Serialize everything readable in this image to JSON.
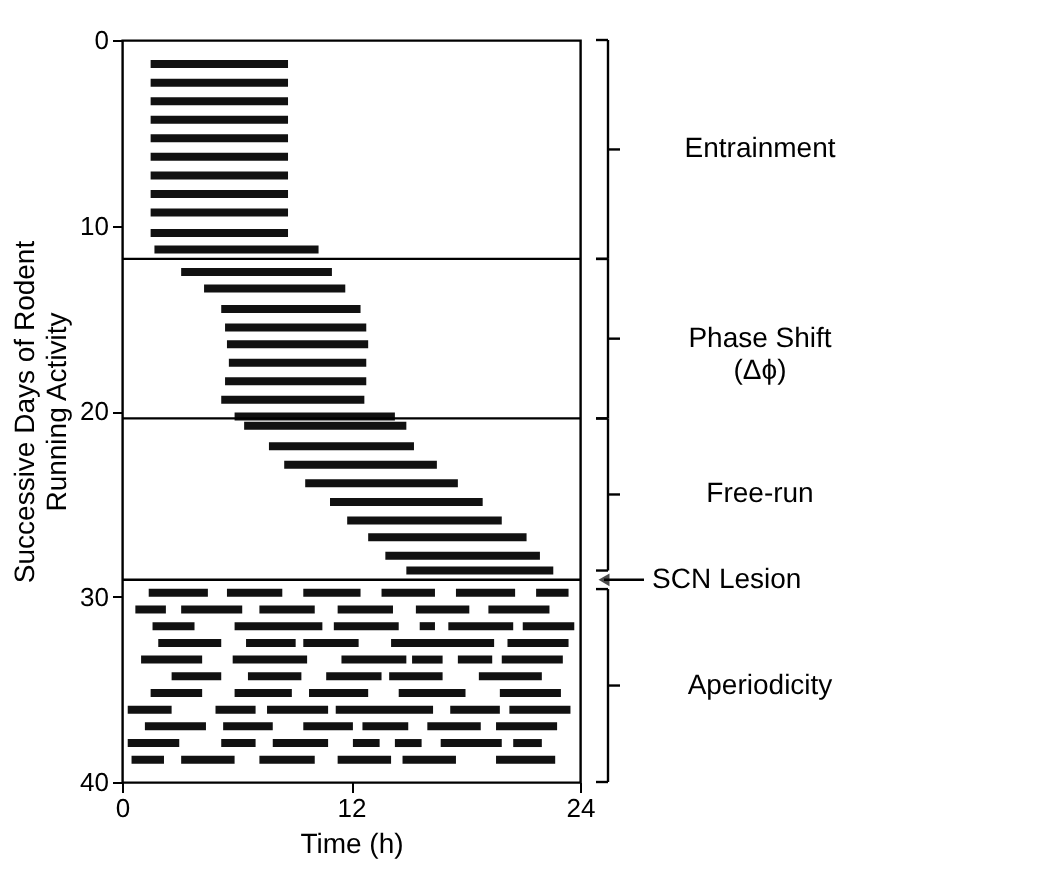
{
  "chart_data": {
    "type": "bar",
    "orientation": "horizontal",
    "xlabel": "Time (h)",
    "ylabel": "Successive Days of Rodent\nRunning Activity",
    "xlim": [
      0,
      24
    ],
    "xticks": [
      0,
      12,
      24
    ],
    "ylim": [
      40,
      0
    ],
    "yticks": [
      0,
      10,
      20,
      30,
      40
    ],
    "grid": false,
    "series": [
      {
        "color": "#111111",
        "x": [
          1.3,
          2.3,
          3.3,
          4.3,
          5.3,
          6.3,
          7.3,
          8.3,
          9.3,
          10.4,
          11.3,
          12.5,
          13.4,
          14.5,
          15.5,
          16.4,
          17.4,
          18.4,
          19.4,
          20.3,
          20.8,
          21.9,
          22.9,
          23.9,
          24.9,
          25.9,
          26.8,
          27.8,
          28.6,
          29.8,
          30.7,
          31.6,
          32.5,
          33.4,
          34.3,
          35.2,
          36.1,
          37.0,
          37.9,
          38.8
        ],
        "base": [
          1.5,
          1.5,
          1.5,
          1.5,
          1.5,
          1.5,
          1.5,
          1.5,
          1.5,
          1.5,
          1.7,
          3.1,
          4.3,
          5.2,
          5.4,
          5.5,
          5.6,
          5.4,
          5.2,
          5.9,
          6.4,
          7.7,
          8.5,
          9.6,
          10.9,
          11.8,
          12.9,
          13.8,
          14.9,
          1.4,
          0.7,
          1.6,
          1.9,
          1.0,
          2.6,
          1.5,
          0.3,
          1.2,
          0.3,
          0.5
        ],
        "values": [
          7.2,
          7.2,
          7.2,
          7.2,
          7.2,
          7.2,
          7.2,
          7.2,
          7.2,
          7.2,
          8.6,
          7.9,
          7.4,
          7.3,
          7.4,
          7.4,
          7.2,
          7.4,
          7.5,
          8.4,
          8.5,
          7.6,
          8.0,
          8.0,
          8.0,
          8.1,
          8.3,
          8.1,
          7.7,
          3.1,
          1.6,
          2.2,
          3.3,
          3.2,
          2.6,
          2.7,
          2.3,
          3.2,
          2.7,
          1.7
        ]
      },
      {
        "color": "#111111",
        "x": [
          29.8,
          30.7,
          31.6,
          32.5,
          33.4,
          34.3,
          35.2,
          36.1,
          37.0,
          37.9,
          38.8
        ],
        "base": [
          5.5,
          3.1,
          5.9,
          6.5,
          5.8,
          6.6,
          5.9,
          4.9,
          5.3,
          5.2,
          3.1
        ],
        "values": [
          2.9,
          3.2,
          4.6,
          2.6,
          3.9,
          2.8,
          3.0,
          2.1,
          2.6,
          1.8,
          2.8
        ]
      },
      {
        "color": "#111111",
        "x": [
          29.8,
          30.7,
          31.6,
          32.5,
          33.4,
          34.3,
          35.2,
          36.1,
          37.0,
          37.9,
          38.8
        ],
        "base": [
          9.5,
          7.2,
          11.1,
          9.5,
          11.5,
          10.7,
          9.8,
          7.6,
          9.5,
          7.9,
          7.2
        ],
        "values": [
          3.0,
          2.9,
          3.4,
          2.9,
          3.4,
          2.9,
          3.1,
          3.2,
          2.6,
          2.9,
          2.9
        ]
      },
      {
        "color": "#111111",
        "x": [
          29.8,
          30.7,
          31.6,
          32.5,
          33.4,
          34.3,
          35.2,
          36.1,
          37.0,
          37.9,
          38.8
        ],
        "base": [
          13.6,
          11.3,
          15.6,
          14.1,
          15.2,
          14.0,
          14.5,
          11.2,
          12.6,
          12.1,
          11.3
        ],
        "values": [
          2.8,
          2.9,
          0.8,
          5.4,
          1.6,
          2.8,
          3.5,
          5.1,
          2.4,
          1.4,
          2.8
        ]
      },
      {
        "color": "#111111",
        "x": [
          29.8,
          30.7,
          31.6,
          32.5,
          33.4,
          34.3,
          35.2,
          36.1,
          37.0,
          37.9,
          38.8
        ],
        "base": [
          17.5,
          15.4,
          17.1,
          20.2,
          17.6,
          18.7,
          19.8,
          17.2,
          16.0,
          14.3,
          14.7
        ],
        "values": [
          3.1,
          2.8,
          3.4,
          3.2,
          1.8,
          3.3,
          3.2,
          2.6,
          2.8,
          1.4,
          2.8
        ]
      },
      {
        "color": "#111111",
        "x": [
          29.8,
          30.7,
          31.6,
          33.4,
          36.1,
          37.0,
          37.9,
          38.8
        ],
        "base": [
          21.7,
          19.2,
          21.0,
          19.9,
          20.3,
          19.6,
          16.7,
          19.6
        ],
        "values": [
          1.7,
          3.2,
          2.7,
          3.2,
          3.2,
          3.2,
          3.2,
          3.1
        ]
      },
      {
        "color": "#111111",
        "x": [
          37.9
        ],
        "base": [
          20.5
        ],
        "values": [
          1.5
        ]
      }
    ],
    "ref_lines": [
      {
        "axis": "y",
        "value": 11.8
      },
      {
        "axis": "y",
        "value": 20.4
      },
      {
        "axis": "y",
        "value": 29.1,
        "label": "SCN Lesion"
      }
    ],
    "annotations": [
      "Entrainment",
      "Phase Shift\n(Δϕ)",
      "Free-run",
      "Aperiodicity"
    ]
  }
}
